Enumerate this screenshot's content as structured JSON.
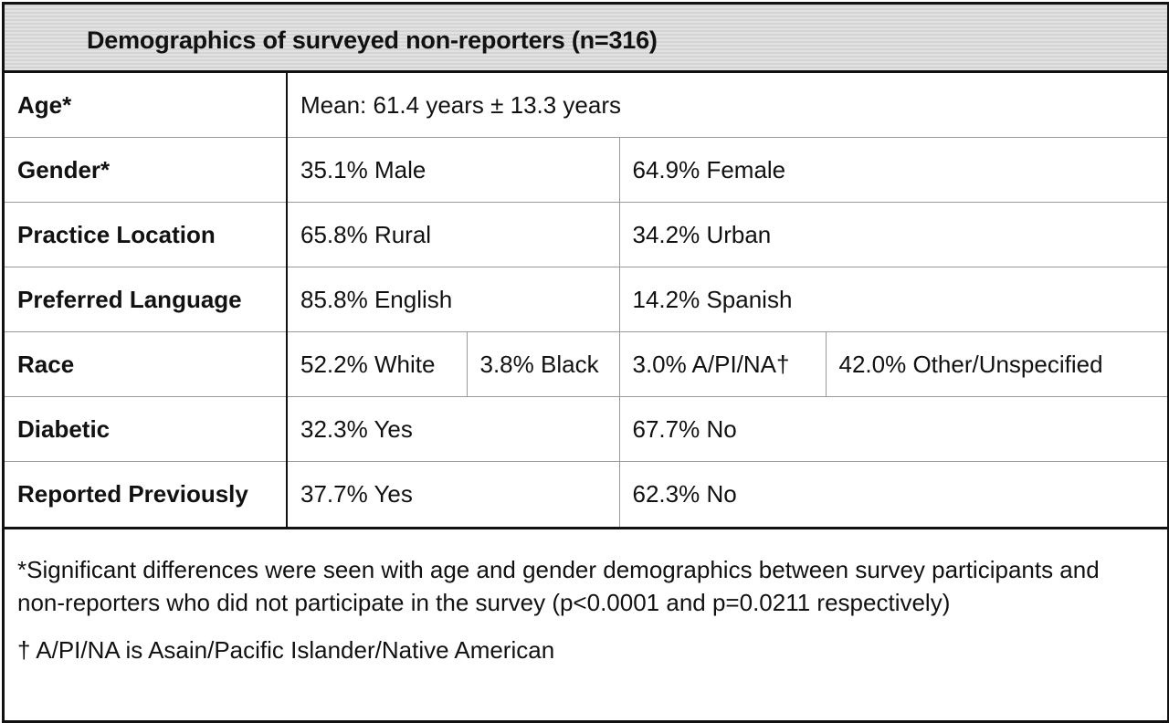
{
  "title": "Demographics of surveyed non-reporters (n=316)",
  "rows": {
    "age": {
      "label": "Age*",
      "value": "Mean: 61.4 years ± 13.3 years"
    },
    "gender": {
      "label": "Gender*",
      "values": [
        "35.1% Male",
        "64.9% Female"
      ]
    },
    "practice_location": {
      "label": "Practice Location",
      "values": [
        "65.8% Rural",
        "34.2% Urban"
      ]
    },
    "preferred_language": {
      "label": "Preferred Language",
      "values": [
        "85.8% English",
        "14.2% Spanish"
      ]
    },
    "race": {
      "label": "Race",
      "values": [
        "52.2% White",
        "3.8% Black",
        "3.0% A/PI/NA†",
        "42.0% Other/Unspecified"
      ]
    },
    "diabetic": {
      "label": "Diabetic",
      "values": [
        "32.3% Yes",
        "67.7% No"
      ]
    },
    "reported_previously": {
      "label": "Reported Previously",
      "values": [
        "37.7% Yes",
        "62.3% No"
      ]
    }
  },
  "footnotes": {
    "significance": "*Significant differences were seen with age and gender demographics between survey participants and non-reporters who did not participate in the survey (p<0.0001 and p=0.0211 respectively)",
    "abbreviation": "† A/PI/NA is Asain/Pacific Islander/Native American"
  }
}
